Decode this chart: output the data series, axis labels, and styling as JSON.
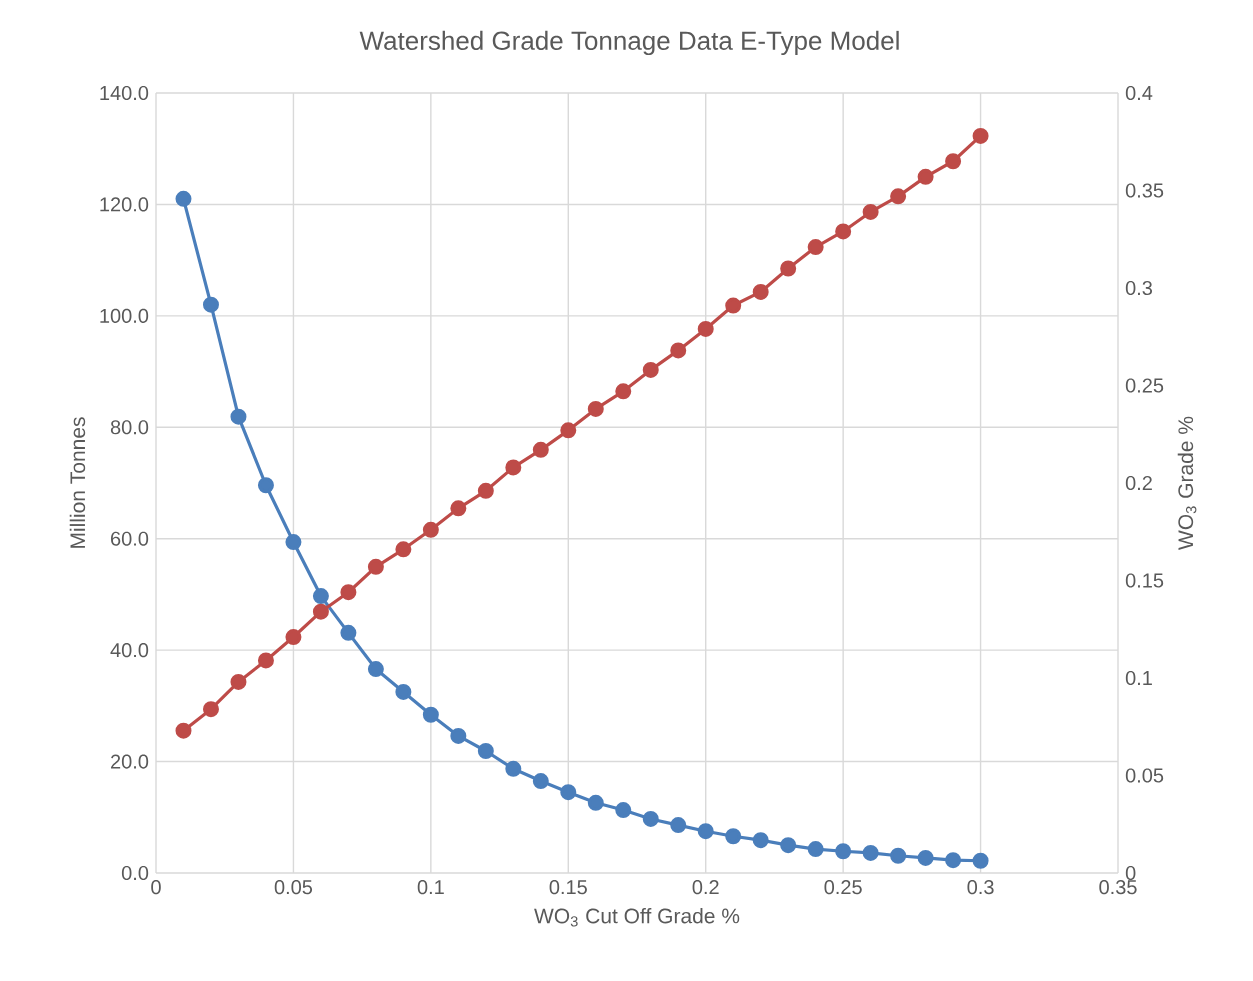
{
  "chart_data": {
    "type": "line",
    "title": "Watershed Grade Tonnage Data E-Type Model",
    "xlabel": "WO$_{3}$ Cut Off Grade  %",
    "ylabel": "Million Tonnes",
    "y2label": "WO$_{3}$ Grade  %",
    "x": [
      0.01,
      0.02,
      0.03,
      0.04,
      0.05,
      0.06,
      0.07,
      0.08,
      0.09,
      0.1,
      0.11,
      0.12,
      0.13,
      0.14,
      0.15,
      0.16,
      0.17,
      0.18,
      0.19,
      0.2,
      0.21,
      0.22,
      0.23,
      0.24,
      0.25,
      0.26,
      0.27,
      0.28,
      0.29,
      0.3
    ],
    "series": [
      {
        "color": "#4a7ebb",
        "values": [
          121.0,
          102.0,
          81.9,
          69.6,
          59.4,
          49.7,
          43.1,
          36.6,
          32.5,
          28.4,
          24.6,
          21.9,
          18.7,
          16.5,
          14.5,
          12.6,
          11.3,
          9.7,
          8.6,
          7.5,
          6.6,
          5.9,
          5.0,
          4.3,
          3.9,
          3.6,
          3.1,
          2.7,
          2.3,
          2.2
        ]
      },
      {
        "color": "#be4b48",
        "axis": "y2",
        "values": [
          0.073,
          0.084,
          0.098,
          0.109,
          0.121,
          0.134,
          0.144,
          0.157,
          0.166,
          0.176,
          0.187,
          0.196,
          0.208,
          0.217,
          0.227,
          0.238,
          0.247,
          0.258,
          0.268,
          0.279,
          0.291,
          0.298,
          0.31,
          0.321,
          0.329,
          0.339,
          0.347,
          0.357,
          0.365,
          0.378
        ]
      }
    ],
    "xlim": [
      0,
      0.35
    ],
    "xticks": [
      0,
      0.05,
      0.1,
      0.15,
      0.2,
      0.25,
      0.3,
      0.35
    ],
    "ylim": [
      0,
      140
    ],
    "yticks": [
      {
        "value": 0,
        "label": "0.0"
      },
      {
        "value": 20,
        "label": "20.0"
      },
      {
        "value": 40,
        "label": "40.0"
      },
      {
        "value": 60,
        "label": "60.0"
      },
      {
        "value": 80,
        "label": "80.0"
      },
      {
        "value": 100,
        "label": "100.0"
      },
      {
        "value": 120,
        "label": "120.0"
      },
      {
        "value": 140,
        "label": "140.0"
      }
    ],
    "y2lim": [
      0,
      0.4
    ],
    "y2ticks": [
      0,
      0.05,
      0.1,
      0.15,
      0.2,
      0.25,
      0.3,
      0.35,
      0.4
    ],
    "grid": true,
    "marker": "circle",
    "line_style": "solid"
  }
}
